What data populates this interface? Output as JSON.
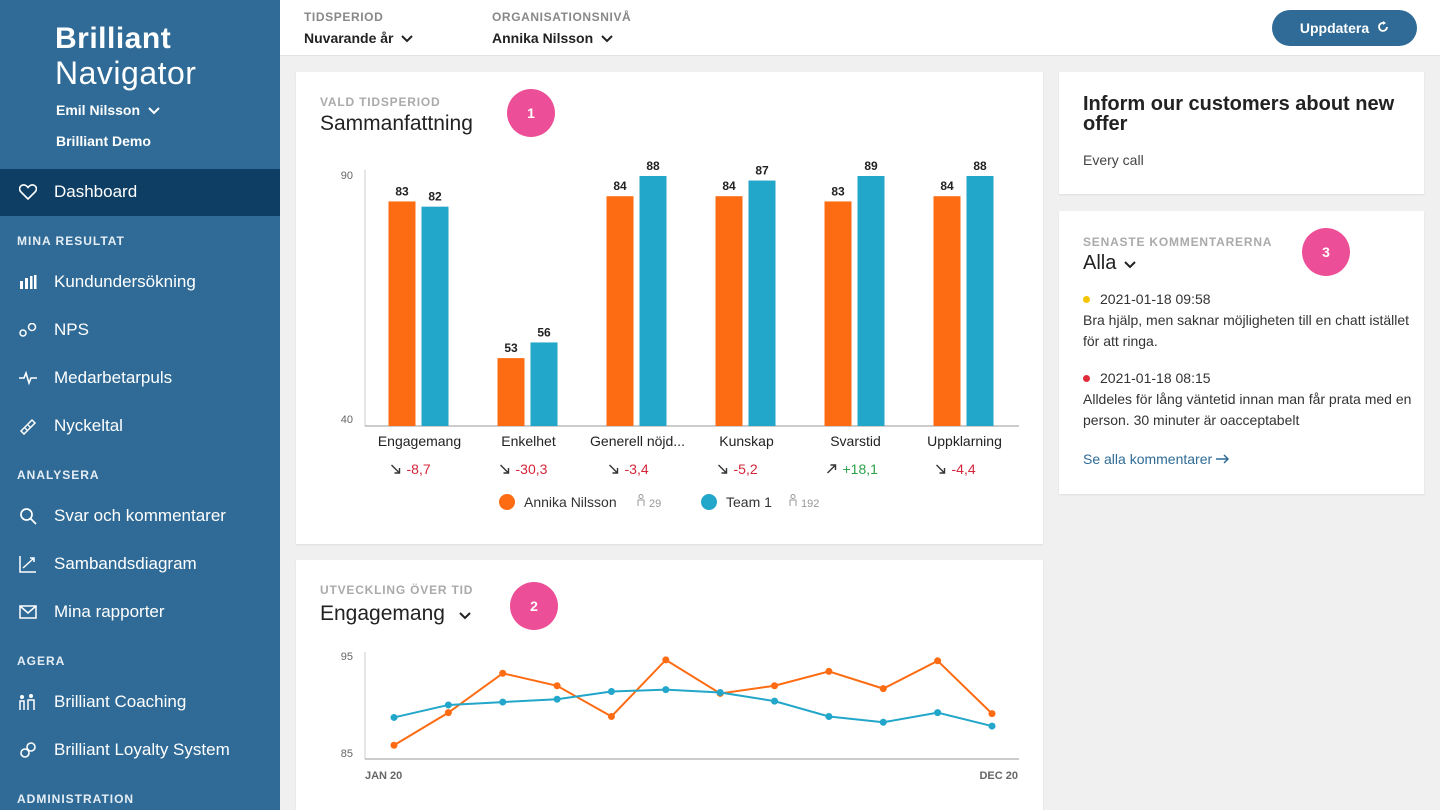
{
  "brand": {
    "line1": "Brilliant",
    "line2": "Navigator"
  },
  "user": {
    "name": "Emil Nilsson",
    "org": "Brilliant Demo"
  },
  "sidebar": {
    "active": {
      "label": "Dashboard",
      "icon": "heart-icon"
    },
    "sections": [
      {
        "title": "MINA RESULTAT",
        "items": [
          {
            "label": "Kundundersökning",
            "icon": "bar-chart-icon"
          },
          {
            "label": "NPS",
            "icon": "nps-icon"
          },
          {
            "label": "Medarbetarpuls",
            "icon": "pulse-icon"
          },
          {
            "label": "Nyckeltal",
            "icon": "ruler-icon"
          }
        ]
      },
      {
        "title": "ANALYSERA",
        "items": [
          {
            "label": "Svar och kommentarer",
            "icon": "search-icon"
          },
          {
            "label": "Sambandsdiagram",
            "icon": "trend-icon"
          },
          {
            "label": "Mina rapporter",
            "icon": "mail-icon"
          }
        ]
      },
      {
        "title": "AGERA",
        "items": [
          {
            "label": "Brilliant Coaching",
            "icon": "coaching-icon"
          },
          {
            "label": "Brilliant Loyalty System",
            "icon": "loyalty-icon"
          }
        ]
      },
      {
        "title": "ADMINISTRATION",
        "items": []
      }
    ]
  },
  "topbar": {
    "period": {
      "caption": "TIDSPERIOD",
      "value": "Nuvarande år"
    },
    "org": {
      "caption": "ORGANISATIONSNIVÅ",
      "value": "Annika Nilsson"
    },
    "update_label": "Uppdatera"
  },
  "summary": {
    "caption": "VALD TIDSPERIOD",
    "title": "Sammanfattning",
    "badge": "1",
    "chart_data": {
      "type": "bar",
      "categories": [
        "Engagemang",
        "Enkelhet",
        "Generell nöjd...",
        "Kunskap",
        "Svarstid",
        "Uppklarning"
      ],
      "series": [
        {
          "name": "Annika Nilsson",
          "values": [
            83,
            53,
            84,
            84,
            83,
            84
          ],
          "color": "#fd6c13",
          "count": "29"
        },
        {
          "name": "Team 1",
          "values": [
            82,
            56,
            88,
            87,
            89,
            88
          ],
          "color": "#22a6c9",
          "count": "192"
        }
      ],
      "deltas": [
        "-8,7",
        "-30,3",
        "-3,4",
        "-5,2",
        "+18,1",
        "-4,4"
      ],
      "delta_dirs": [
        "down",
        "down",
        "down",
        "down",
        "up",
        "down"
      ],
      "yticks": [
        "90",
        "40"
      ],
      "ylim": [
        40,
        90
      ]
    }
  },
  "trend": {
    "caption": "UTVECKLING ÖVER TID",
    "title": "Engagemang",
    "badge": "2",
    "chart_data": {
      "type": "line",
      "x_labels": [
        "JAN 20",
        "DEC 20"
      ],
      "yticks": [
        "95",
        "85"
      ],
      "ylim": [
        85,
        95
      ],
      "series": [
        {
          "name": "Annika Nilsson",
          "color": "#fd6c13",
          "values": [
            85.7,
            89.1,
            93.2,
            91.9,
            88.7,
            94.6,
            91.1,
            91.9,
            93.4,
            91.6,
            94.5,
            89.0
          ]
        },
        {
          "name": "Team 1",
          "color": "#22a6c9",
          "values": [
            88.6,
            89.9,
            90.2,
            90.5,
            91.3,
            91.5,
            91.2,
            90.3,
            88.7,
            88.1,
            89.1,
            87.7
          ]
        }
      ]
    }
  },
  "offer": {
    "title": "Inform our customers about new offer",
    "subtitle": "Every call"
  },
  "comments": {
    "caption": "SENASTE KOMMENTARERNA",
    "filter": "Alla",
    "badge": "3",
    "items": [
      {
        "date": "2021-01-18 09:58",
        "text": "Bra hjälp, men saknar möjligheten till en chatt istället för att ringa.",
        "color": "#f5c400"
      },
      {
        "date": "2021-01-18 08:15",
        "text": "Alldeles för lång väntetid innan man får prata med en person. 30 minuter är oacceptabelt",
        "color": "#e02b3b"
      }
    ],
    "see_all": "Se alla kommentarer"
  }
}
